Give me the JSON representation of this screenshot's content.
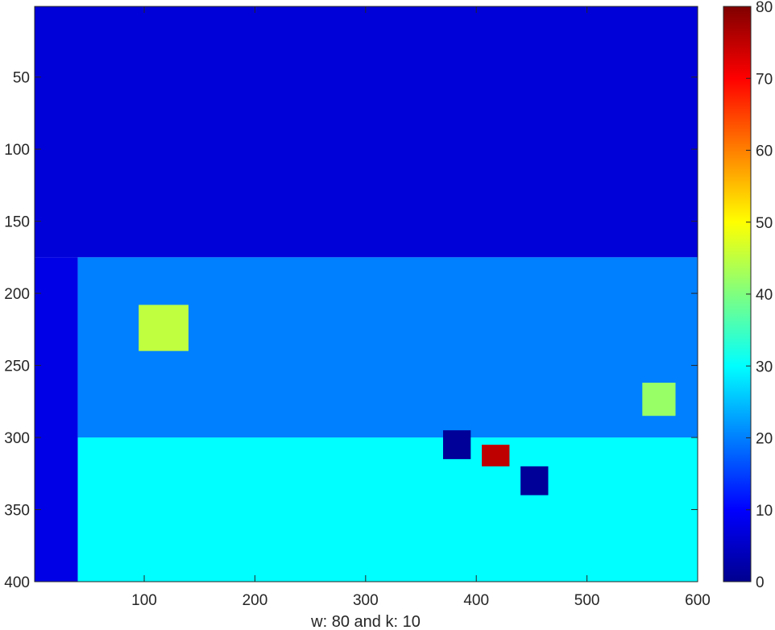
{
  "chart_data": {
    "type": "heatmap",
    "title": "",
    "xlabel": "w: 80 and k: 10",
    "ylabel": "",
    "x_ticks": [
      100,
      200,
      300,
      400,
      500,
      600
    ],
    "y_ticks": [
      50,
      100,
      150,
      200,
      250,
      300,
      350,
      400
    ],
    "xlim": [
      1,
      600
    ],
    "ylim": [
      1,
      400
    ],
    "y_direction": "reversed",
    "colormap": "jet",
    "color_range": [
      0,
      80
    ],
    "colorbar_ticks": [
      0,
      10,
      20,
      30,
      40,
      50,
      60,
      70,
      80
    ],
    "colorbar_position": "right",
    "regions": [
      {
        "label": "upper band (rows 1-175)",
        "x_range": [
          1,
          600
        ],
        "y_range": [
          1,
          175
        ],
        "value_approx": 7
      },
      {
        "label": "left dark edge",
        "x_range": [
          1,
          40
        ],
        "y_range": [
          175,
          400
        ],
        "value_approx": 8
      },
      {
        "label": "middle band (rows 175-300)",
        "x_range": [
          40,
          600
        ],
        "y_range": [
          175,
          300
        ],
        "value_approx": 20
      },
      {
        "label": "lower band (rows 300-400)",
        "x_range": [
          40,
          600
        ],
        "y_range": [
          300,
          400
        ],
        "value_approx": 30
      },
      {
        "label": "yellow patch",
        "x_range": [
          95,
          140
        ],
        "y_range": [
          208,
          240
        ],
        "value_approx": 45
      },
      {
        "label": "red blob",
        "x_range": [
          405,
          430
        ],
        "y_range": [
          305,
          320
        ],
        "value_approx": 75
      },
      {
        "label": "yellow-green blob",
        "x_range": [
          550,
          580
        ],
        "y_range": [
          262,
          285
        ],
        "value_approx": 42
      },
      {
        "label": "dark blob",
        "x_range": [
          440,
          465
        ],
        "y_range": [
          320,
          340
        ],
        "value_approx": 2
      },
      {
        "label": "dark blob",
        "x_range": [
          370,
          395
        ],
        "y_range": [
          295,
          315
        ],
        "value_approx": 2
      }
    ]
  }
}
